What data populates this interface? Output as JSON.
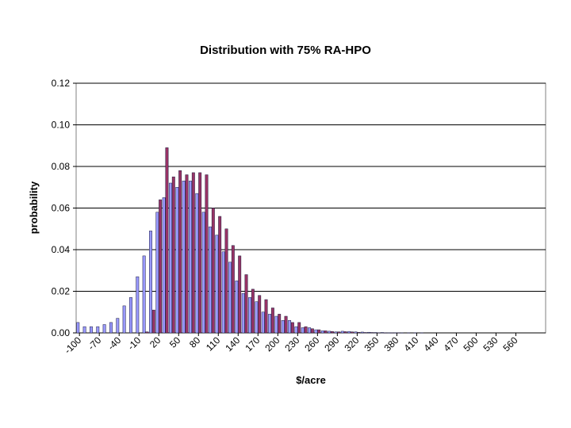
{
  "chart_data": {
    "type": "bar",
    "title": "Distribution with 75% RA-HPO",
    "xlabel": "$/acre",
    "ylabel": "probability",
    "ylim": [
      0,
      0.12
    ],
    "yticks": [
      "0.00",
      "0.02",
      "0.04",
      "0.06",
      "0.08",
      "0.10",
      "0.12"
    ],
    "grid": true,
    "legend": "none",
    "categories": [
      -100,
      -90,
      -80,
      -70,
      -60,
      -50,
      -40,
      -30,
      -20,
      -10,
      0,
      10,
      20,
      30,
      40,
      50,
      60,
      70,
      80,
      90,
      100,
      110,
      120,
      130,
      140,
      150,
      160,
      170,
      180,
      190,
      200,
      210,
      220,
      230,
      240,
      250,
      260,
      270,
      280,
      290,
      300,
      310,
      320,
      330,
      340,
      350,
      360,
      370,
      380,
      390,
      400,
      410,
      420,
      430,
      440,
      450,
      460,
      470,
      480,
      490,
      500,
      510,
      520,
      530,
      540,
      550,
      560,
      570,
      580,
      590,
      600
    ],
    "tick_labels": [
      "-100",
      "-70",
      "-40",
      "-10",
      "20",
      "50",
      "80",
      "110",
      "140",
      "170",
      "200",
      "230",
      "260",
      "290",
      "320",
      "350",
      "380",
      "410",
      "440",
      "470",
      "500",
      "530",
      "560"
    ],
    "series": [
      {
        "color": "#9999ff",
        "values": [
          0.005,
          0.003,
          0.003,
          0.003,
          0.004,
          0.005,
          0.007,
          0.013,
          0.017,
          0.027,
          0.037,
          0.049,
          0.058,
          0.065,
          0.072,
          0.07,
          0.073,
          0.073,
          0.067,
          0.058,
          0.051,
          0.047,
          0.039,
          0.034,
          0.025,
          0.019,
          0.017,
          0.015,
          0.01,
          0.009,
          0.008,
          0.006,
          0.006,
          0.003,
          0.0025,
          0.0025,
          0.0015,
          0.001,
          0.0008,
          0.0005,
          0.0008,
          0.0007,
          0.0005,
          0.0004,
          0.0003,
          0.0002,
          0.0002,
          0.0001,
          0.0001,
          0.0001,
          0.0001,
          0.0001,
          0.0001,
          0,
          0,
          0,
          0,
          0,
          0,
          0,
          0,
          0,
          0,
          0,
          0,
          0,
          0,
          0,
          0,
          0,
          0
        ]
      },
      {
        "color": "#993366",
        "values": [
          0,
          0,
          0,
          0,
          0,
          0,
          0,
          0,
          0,
          0,
          0.0005,
          0.011,
          0.064,
          0.089,
          0.075,
          0.078,
          0.076,
          0.077,
          0.077,
          0.076,
          0.06,
          0.056,
          0.05,
          0.042,
          0.037,
          0.028,
          0.021,
          0.018,
          0.016,
          0.012,
          0.009,
          0.008,
          0.005,
          0.005,
          0.003,
          0.002,
          0.0015,
          0.001,
          0.0007,
          0.0005,
          0.0006,
          0.0005,
          0.0003,
          0.0002,
          0.0002,
          0.0001,
          0.0001,
          0.0001,
          0.0001,
          0,
          0,
          0,
          0,
          0,
          0,
          0,
          0,
          0,
          0,
          0,
          0,
          0,
          0,
          0,
          0,
          0,
          0,
          0,
          0,
          0,
          0
        ]
      }
    ]
  }
}
